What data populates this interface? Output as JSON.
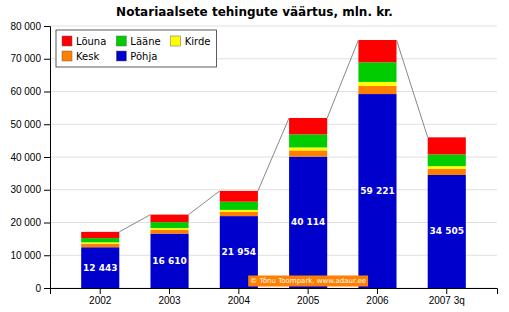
{
  "chart_data": {
    "type": "bar",
    "stacked": true,
    "title": "Notariaalsete tehingute väärtus, mln. kr.",
    "categories": [
      "2002",
      "2003",
      "2004",
      "2005",
      "2006",
      "2007 3q"
    ],
    "series": [
      {
        "name": "Põhja",
        "color": "#0000CC",
        "values": [
          12443,
          16610,
          21954,
          40114,
          59221,
          34505
        ],
        "value_labels": [
          "12 443",
          "16 610",
          "21 954",
          "40 114",
          "59 221",
          "34 505"
        ]
      },
      {
        "name": "Kesk",
        "color": "#FF8000",
        "values": [
          1100,
          1200,
          1300,
          1900,
          2500,
          1900
        ]
      },
      {
        "name": "Kirde",
        "color": "#FFFF00",
        "values": [
          400,
          500,
          600,
          900,
          1200,
          800
        ]
      },
      {
        "name": "Lääne",
        "color": "#00CC00",
        "values": [
          1300,
          1800,
          2500,
          4000,
          6000,
          3600
        ]
      },
      {
        "name": "Lõuna",
        "color": "#FF0000",
        "values": [
          1900,
          2300,
          3300,
          5000,
          6800,
          5200
        ]
      }
    ],
    "data_labels": true,
    "annotation": "© Tõnu Toompark, www.adaur.ee",
    "ylim": [
      0,
      80000
    ],
    "yticks": [
      0,
      {
        "value": 10000,
        "label": "10 000"
      },
      {
        "value": 20000,
        "label": "20 000"
      },
      {
        "value": 30000,
        "label": "30 000"
      },
      {
        "value": 40000,
        "label": "40 000"
      },
      {
        "value": 50000,
        "label": "50 000"
      },
      {
        "value": 60000,
        "label": "60 000"
      },
      {
        "value": 70000,
        "label": "70 000"
      },
      {
        "value": 80000,
        "label": "80 000"
      }
    ],
    "grid": true,
    "legend": "upper-left"
  }
}
